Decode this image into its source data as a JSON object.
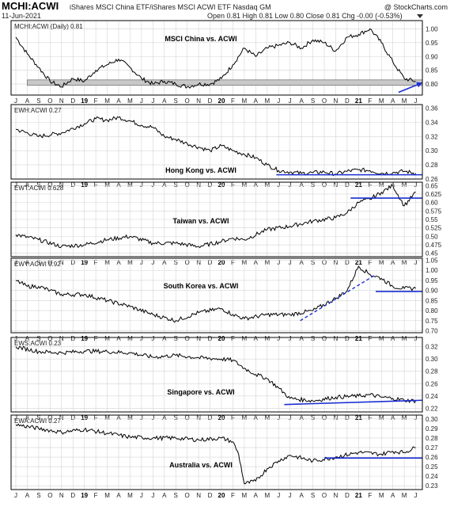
{
  "header": {
    "symbol": "MCHI:ACWI",
    "description": "iShares MSCI China ETF/iShares MSCI ACWI ETF  Nasdaq GM",
    "date": "11-Jun-2021",
    "ohlc": "Open 0.81  High 0.81  Low 0.80  Close 0.81  Chg -0.00 (-0.53%)",
    "watermark": "@ StockCharts.com"
  },
  "chart_data": {
    "type": "line",
    "x_ticks": [
      "J",
      "A",
      "S",
      "O",
      "N",
      "D",
      "19",
      "F",
      "M",
      "A",
      "M",
      "J",
      "J",
      "A",
      "S",
      "O",
      "N",
      "D",
      "20",
      "F",
      "M",
      "A",
      "M",
      "J",
      "J",
      "A",
      "S",
      "O",
      "N",
      "D",
      "21",
      "F",
      "M",
      "A",
      "M",
      "J"
    ],
    "x_bold": [
      "19",
      "20",
      "21"
    ],
    "panels": [
      {
        "id": "mchi",
        "label": "MCHI:ACWI (Daily) 0.81",
        "title": "MSCI China vs. ACWI",
        "yticks": [
          1.0,
          0.95,
          0.9,
          0.85,
          0.8
        ],
        "ylim": [
          0.76,
          1.03
        ],
        "support_band": [
          0.795,
          0.815
        ],
        "points": [
          [
            0,
            0.97
          ],
          [
            1,
            0.91
          ],
          [
            2,
            0.86
          ],
          [
            3,
            0.81
          ],
          [
            4,
            0.79
          ],
          [
            5,
            0.82
          ],
          [
            6,
            0.81
          ],
          [
            7,
            0.85
          ],
          [
            8,
            0.87
          ],
          [
            9,
            0.89
          ],
          [
            10,
            0.86
          ],
          [
            11,
            0.82
          ],
          [
            12,
            0.8
          ],
          [
            13,
            0.81
          ],
          [
            14,
            0.8
          ],
          [
            15,
            0.79
          ],
          [
            16,
            0.8
          ],
          [
            17,
            0.8
          ],
          [
            18,
            0.82
          ],
          [
            19,
            0.87
          ],
          [
            20,
            0.93
          ],
          [
            21,
            0.9
          ],
          [
            22,
            0.93
          ],
          [
            23,
            0.94
          ],
          [
            24,
            0.95
          ],
          [
            25,
            0.93
          ],
          [
            26,
            0.96
          ],
          [
            27,
            0.95
          ],
          [
            28,
            0.92
          ],
          [
            29,
            0.97
          ],
          [
            30,
            0.98
          ],
          [
            31,
            1.0
          ],
          [
            32,
            0.95
          ],
          [
            33,
            0.88
          ],
          [
            34,
            0.82
          ],
          [
            35,
            0.81
          ]
        ],
        "annotation_arrow": [
          [
            33.5,
            0.77
          ],
          [
            35.6,
            0.805
          ]
        ]
      },
      {
        "id": "ewh",
        "label": "EWH:ACWI 0.27",
        "title": "Hong Kong vs. ACWI",
        "yticks": [
          0.36,
          0.34,
          0.32,
          0.3,
          0.28,
          0.26
        ],
        "ylim": [
          0.26,
          0.365
        ],
        "points": [
          [
            0,
            0.33
          ],
          [
            2,
            0.32
          ],
          [
            4,
            0.325
          ],
          [
            6,
            0.338
          ],
          [
            7,
            0.345
          ],
          [
            8,
            0.343
          ],
          [
            9,
            0.347
          ],
          [
            10,
            0.342
          ],
          [
            11,
            0.336
          ],
          [
            12,
            0.333
          ],
          [
            13,
            0.32
          ],
          [
            14,
            0.316
          ],
          [
            15,
            0.31
          ],
          [
            16,
            0.305
          ],
          [
            17,
            0.3
          ],
          [
            18,
            0.307
          ],
          [
            19,
            0.3
          ],
          [
            20,
            0.295
          ],
          [
            21,
            0.29
          ],
          [
            22,
            0.28
          ],
          [
            23,
            0.272
          ],
          [
            24,
            0.27
          ],
          [
            25,
            0.268
          ],
          [
            26,
            0.269
          ],
          [
            27,
            0.27
          ],
          [
            28,
            0.267
          ],
          [
            29,
            0.271
          ],
          [
            30,
            0.273
          ],
          [
            31,
            0.272
          ],
          [
            32,
            0.268
          ],
          [
            33,
            0.269
          ],
          [
            34,
            0.271
          ],
          [
            35,
            0.268
          ]
        ],
        "support_line": [
          [
            22.8,
            0.266
          ],
          [
            35.6,
            0.266
          ]
        ]
      },
      {
        "id": "ewt",
        "label": "EWT:ACWI 0.628",
        "title": "Taiwan vs. ACWI",
        "yticks": [
          0.65,
          0.625,
          0.6,
          0.575,
          0.55,
          0.525,
          0.5,
          0.475,
          0.45
        ],
        "ylim": [
          0.44,
          0.66
        ],
        "points": [
          [
            0,
            0.505
          ],
          [
            2,
            0.49
          ],
          [
            4,
            0.47
          ],
          [
            6,
            0.475
          ],
          [
            8,
            0.49
          ],
          [
            10,
            0.5
          ],
          [
            12,
            0.48
          ],
          [
            14,
            0.48
          ],
          [
            16,
            0.47
          ],
          [
            18,
            0.485
          ],
          [
            19,
            0.495
          ],
          [
            20,
            0.49
          ],
          [
            22,
            0.52
          ],
          [
            24,
            0.53
          ],
          [
            26,
            0.545
          ],
          [
            28,
            0.555
          ],
          [
            29,
            0.57
          ],
          [
            30,
            0.6
          ],
          [
            31,
            0.61
          ],
          [
            32,
            0.63
          ],
          [
            33,
            0.65
          ],
          [
            34,
            0.59
          ],
          [
            35,
            0.63
          ]
        ],
        "support_line": [
          [
            29.3,
            0.613
          ],
          [
            35.6,
            0.613
          ]
        ]
      },
      {
        "id": "ewy",
        "label": "EWY:ACWI 0.92",
        "title": "South Korea vs. ACWI",
        "yticks": [
          1.05,
          1.0,
          0.95,
          0.9,
          0.85,
          0.8,
          0.75,
          0.7
        ],
        "ylim": [
          0.69,
          1.06
        ],
        "points": [
          [
            0,
            0.95
          ],
          [
            1,
            0.92
          ],
          [
            2,
            0.92
          ],
          [
            3,
            0.9
          ],
          [
            4,
            0.88
          ],
          [
            6,
            0.88
          ],
          [
            8,
            0.85
          ],
          [
            10,
            0.82
          ],
          [
            12,
            0.78
          ],
          [
            14,
            0.75
          ],
          [
            16,
            0.79
          ],
          [
            18,
            0.81
          ],
          [
            19,
            0.78
          ],
          [
            20,
            0.76
          ],
          [
            22,
            0.78
          ],
          [
            24,
            0.78
          ],
          [
            26,
            0.8
          ],
          [
            28,
            0.86
          ],
          [
            29,
            0.9
          ],
          [
            30,
            1.02
          ],
          [
            31,
            0.98
          ],
          [
            32,
            0.96
          ],
          [
            33,
            0.92
          ],
          [
            34,
            0.91
          ],
          [
            35,
            0.91
          ]
        ],
        "trend_line": [
          [
            24.9,
            0.75
          ],
          [
            31.4,
            0.975
          ]
        ],
        "support_line": [
          [
            31.5,
            0.895
          ],
          [
            35.6,
            0.895
          ]
        ]
      },
      {
        "id": "ews",
        "label": "EWS:ACWI 0.23",
        "title": "Singapore vs. ACWI",
        "yticks": [
          0.32,
          0.3,
          0.28,
          0.26,
          0.24,
          0.22
        ],
        "ylim": [
          0.214,
          0.335
        ],
        "points": [
          [
            0,
            0.32
          ],
          [
            2,
            0.312
          ],
          [
            4,
            0.31
          ],
          [
            6,
            0.313
          ],
          [
            8,
            0.312
          ],
          [
            10,
            0.31
          ],
          [
            12,
            0.303
          ],
          [
            14,
            0.306
          ],
          [
            16,
            0.302
          ],
          [
            18,
            0.3
          ],
          [
            19,
            0.298
          ],
          [
            20,
            0.285
          ],
          [
            21,
            0.275
          ],
          [
            22,
            0.268
          ],
          [
            23,
            0.253
          ],
          [
            24,
            0.236
          ],
          [
            26,
            0.232
          ],
          [
            28,
            0.238
          ],
          [
            30,
            0.24
          ],
          [
            31,
            0.242
          ],
          [
            32,
            0.238
          ],
          [
            33,
            0.236
          ],
          [
            34,
            0.233
          ],
          [
            35,
            0.232
          ]
        ],
        "support_line": [
          [
            23.5,
            0.226
          ],
          [
            35.6,
            0.233
          ]
        ]
      },
      {
        "id": "ewa",
        "label": "EWA:ACWI 0.27",
        "title": "Australia vs. ACWI",
        "yticks": [
          0.3,
          0.29,
          0.28,
          0.27,
          0.26,
          0.25,
          0.24,
          0.23
        ],
        "ylim": [
          0.226,
          0.304
        ],
        "points": [
          [
            0,
            0.294
          ],
          [
            2,
            0.29
          ],
          [
            4,
            0.286
          ],
          [
            6,
            0.289
          ],
          [
            8,
            0.285
          ],
          [
            10,
            0.281
          ],
          [
            12,
            0.28
          ],
          [
            14,
            0.28
          ],
          [
            16,
            0.278
          ],
          [
            18,
            0.28
          ],
          [
            19,
            0.276
          ],
          [
            19.5,
            0.263
          ],
          [
            20,
            0.232
          ],
          [
            21,
            0.235
          ],
          [
            22,
            0.248
          ],
          [
            23,
            0.256
          ],
          [
            24,
            0.262
          ],
          [
            26,
            0.256
          ],
          [
            28,
            0.26
          ],
          [
            30,
            0.265
          ],
          [
            32,
            0.263
          ],
          [
            33,
            0.266
          ],
          [
            34,
            0.265
          ],
          [
            35,
            0.27
          ]
        ],
        "support_line": [
          [
            27,
            0.259
          ],
          [
            35.6,
            0.259
          ]
        ]
      }
    ],
    "colors": {
      "line": "#000000",
      "annotation": "#1a2fd1",
      "band": "#c8c8c8",
      "grid": "#d4d4d4",
      "frame": "#000000"
    }
  }
}
